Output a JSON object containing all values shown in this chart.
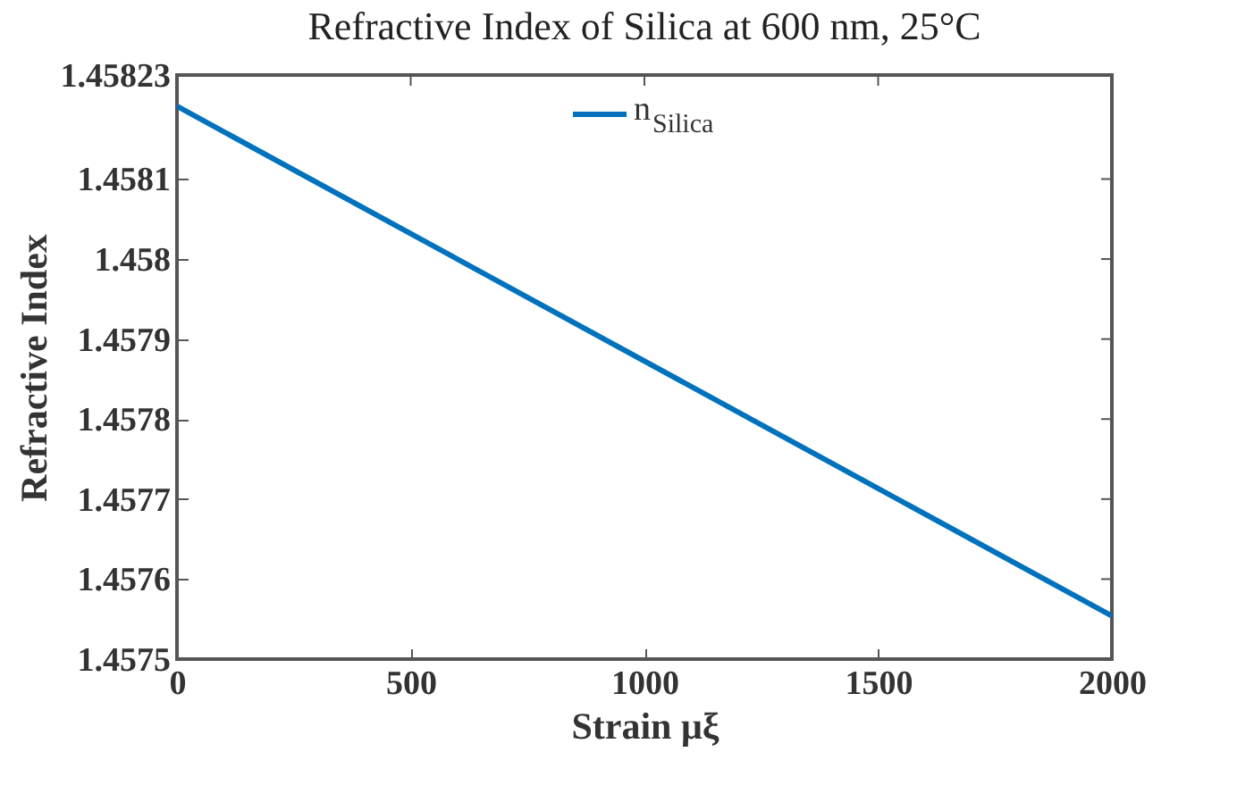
{
  "chart_data": {
    "type": "line",
    "title": "Refractive Index of Silica at 600 nm, 25°C",
    "xlabel": "Strain μξ",
    "ylabel": "Refractive Index",
    "x": [
      0,
      2000
    ],
    "series": [
      {
        "name": "n$_{Silica}$",
        "color": "#0072bd",
        "values": [
          1.458191,
          1.457554
        ]
      }
    ],
    "xlim": [
      0,
      2000
    ],
    "xticks": [
      0,
      500,
      1000,
      1500,
      2000
    ],
    "ylim": [
      1.4575,
      1.45823
    ],
    "yticks": [
      1.4575,
      1.4576,
      1.4577,
      1.4578,
      1.4579,
      1.458,
      1.4581,
      1.45823
    ],
    "grid": false,
    "legend": "top",
    "marker": "none",
    "line_style": "solid"
  }
}
